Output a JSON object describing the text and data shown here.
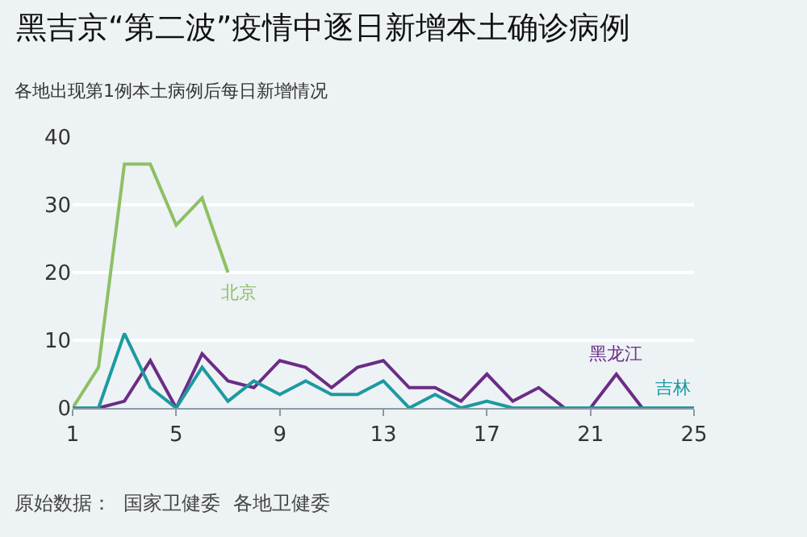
{
  "chart_data": {
    "type": "line",
    "title": "黑吉京“第二波”疫情中逐日新增本土确诊病例",
    "subtitle": "各地出现第1例本土病例后每日新增情况",
    "x": [
      1,
      2,
      3,
      4,
      5,
      6,
      7,
      8,
      9,
      10,
      11,
      12,
      13,
      14,
      15,
      16,
      17,
      18,
      19,
      20,
      21,
      22,
      23,
      24,
      25
    ],
    "series": [
      {
        "name": "北京",
        "color": "#8dc063",
        "values": [
          0,
          6,
          36,
          36,
          27,
          31,
          20,
          null,
          null,
          null,
          null,
          null,
          null,
          null,
          null,
          null,
          null,
          null,
          null,
          null,
          null,
          null,
          null,
          null,
          null
        ]
      },
      {
        "name": "黑龙江",
        "color": "#6b2c86",
        "values": [
          0,
          0,
          1,
          7,
          0,
          8,
          4,
          3,
          7,
          6,
          3,
          6,
          7,
          3,
          3,
          1,
          5,
          1,
          3,
          0,
          0,
          5,
          0,
          null,
          null
        ]
      },
      {
        "name": "吉林",
        "color": "#1c9aa0",
        "values": [
          0,
          0,
          11,
          3,
          0,
          6,
          1,
          4,
          2,
          4,
          2,
          2,
          4,
          0,
          2,
          0,
          1,
          0,
          0,
          0,
          0,
          0,
          0,
          0,
          0
        ]
      }
    ],
    "xlim": [
      1,
      25
    ],
    "xticks": [
      1,
      5,
      9,
      13,
      17,
      21,
      25
    ],
    "ylim": [
      0,
      40
    ],
    "yticks": [
      0,
      10,
      20,
      30,
      40
    ],
    "grid": "y",
    "legend": false,
    "marker": "none",
    "line_style": "solid",
    "annotations": [
      "原始数据：  国家卫健委  各地卫健委"
    ]
  }
}
